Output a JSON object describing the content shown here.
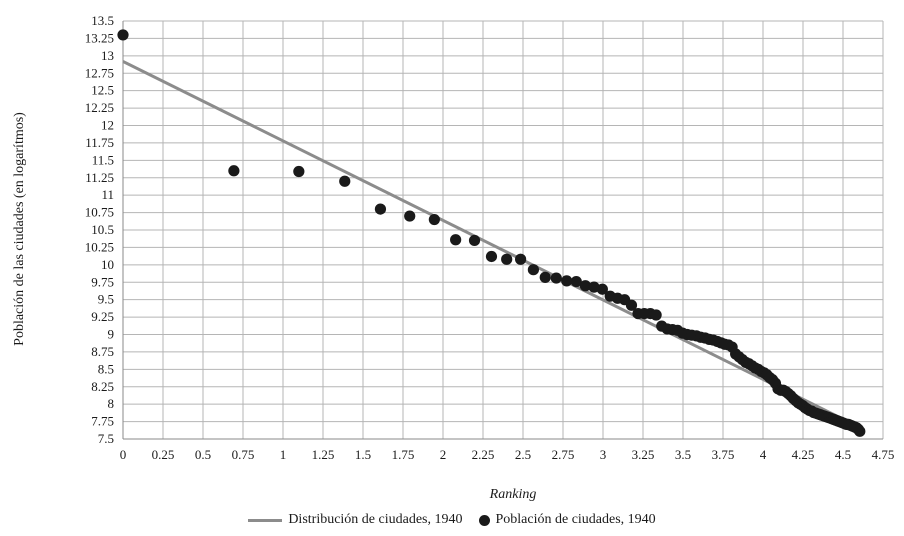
{
  "chart_data": {
    "type": "scatter",
    "title": "",
    "xlabel": "Ranking",
    "ylabel": "Población de las ciudades  (en logarítmos)",
    "xlim": [
      0,
      4.75
    ],
    "ylim": [
      7.5,
      13.5
    ],
    "x_ticks": [
      "0",
      "0.25",
      "0.5",
      "0.75",
      "1",
      "1.25",
      "1.5",
      "1.75",
      "2",
      "2.25",
      "2.5",
      "2.75",
      "3",
      "3.25",
      "3.5",
      "3.75",
      "4",
      "4.25",
      "4.5",
      "4.75"
    ],
    "y_ticks": [
      "7.5",
      "7.75",
      "8",
      "8.25",
      "8.5",
      "8.75",
      "9",
      "9.25",
      "9.5",
      "9.75",
      "10",
      "10.25",
      "10.5",
      "10.75",
      "11",
      "11.25",
      "11.5",
      "11.75",
      "12",
      "12.25",
      "12.5",
      "12.75",
      "13",
      "13.25",
      "13.5"
    ],
    "grid": true,
    "legend_position": "bottom",
    "series": [
      {
        "name": "Distribución de ciudades, 1940",
        "kind": "line",
        "color": "#8c8c8c",
        "x": [
          0,
          4.61
        ],
        "y": [
          12.92,
          7.66
        ]
      },
      {
        "name": "Población de ciudades, 1940",
        "kind": "scatter",
        "color": "#1a1a1a",
        "x": [
          0,
          0.693,
          1.099,
          1.386,
          1.609,
          1.792,
          1.946,
          2.079,
          2.197,
          2.303,
          2.398,
          2.485,
          2.565,
          2.639,
          2.708,
          2.773,
          2.833,
          2.89,
          2.944,
          2.996,
          3.045,
          3.091,
          3.135,
          3.178,
          3.219,
          3.258,
          3.296,
          3.332,
          3.367,
          3.401,
          3.434,
          3.466,
          3.497,
          3.526,
          3.555,
          3.584,
          3.611,
          3.638,
          3.664,
          3.689,
          3.714,
          3.738,
          3.761,
          3.784,
          3.807,
          3.829,
          3.85,
          3.871,
          3.892,
          3.912,
          3.932,
          3.951,
          3.97,
          3.989,
          4.007,
          4.025,
          4.043,
          4.06,
          4.078,
          4.094,
          4.111,
          4.127,
          4.143,
          4.159,
          4.174,
          4.19,
          4.205,
          4.22,
          4.234,
          4.248,
          4.263,
          4.277,
          4.29,
          4.304,
          4.317,
          4.331,
          4.344,
          4.357,
          4.369,
          4.382,
          4.394,
          4.407,
          4.419,
          4.431,
          4.443,
          4.454,
          4.466,
          4.477,
          4.489,
          4.5,
          4.511,
          4.522,
          4.533,
          4.543,
          4.554,
          4.564,
          4.575,
          4.585,
          4.595,
          4.605
        ],
        "y": [
          13.3,
          11.35,
          11.34,
          11.2,
          10.8,
          10.7,
          10.65,
          10.36,
          10.35,
          10.12,
          10.08,
          10.08,
          9.93,
          9.82,
          9.81,
          9.77,
          9.76,
          9.7,
          9.68,
          9.65,
          9.55,
          9.52,
          9.5,
          9.42,
          9.3,
          9.3,
          9.3,
          9.28,
          9.12,
          9.08,
          9.07,
          9.06,
          9.02,
          9.0,
          8.99,
          8.98,
          8.96,
          8.95,
          8.93,
          8.92,
          8.9,
          8.88,
          8.86,
          8.85,
          8.82,
          8.72,
          8.68,
          8.64,
          8.6,
          8.58,
          8.55,
          8.52,
          8.5,
          8.47,
          8.45,
          8.42,
          8.38,
          8.35,
          8.3,
          8.22,
          8.2,
          8.2,
          8.18,
          8.15,
          8.12,
          8.08,
          8.05,
          8.02,
          8.0,
          7.98,
          7.95,
          7.93,
          7.91,
          7.9,
          7.88,
          7.87,
          7.86,
          7.85,
          7.84,
          7.83,
          7.82,
          7.81,
          7.8,
          7.79,
          7.78,
          7.77,
          7.76,
          7.75,
          7.74,
          7.73,
          7.72,
          7.71,
          7.71,
          7.7,
          7.69,
          7.68,
          7.67,
          7.66,
          7.64,
          7.61
        ]
      }
    ]
  }
}
